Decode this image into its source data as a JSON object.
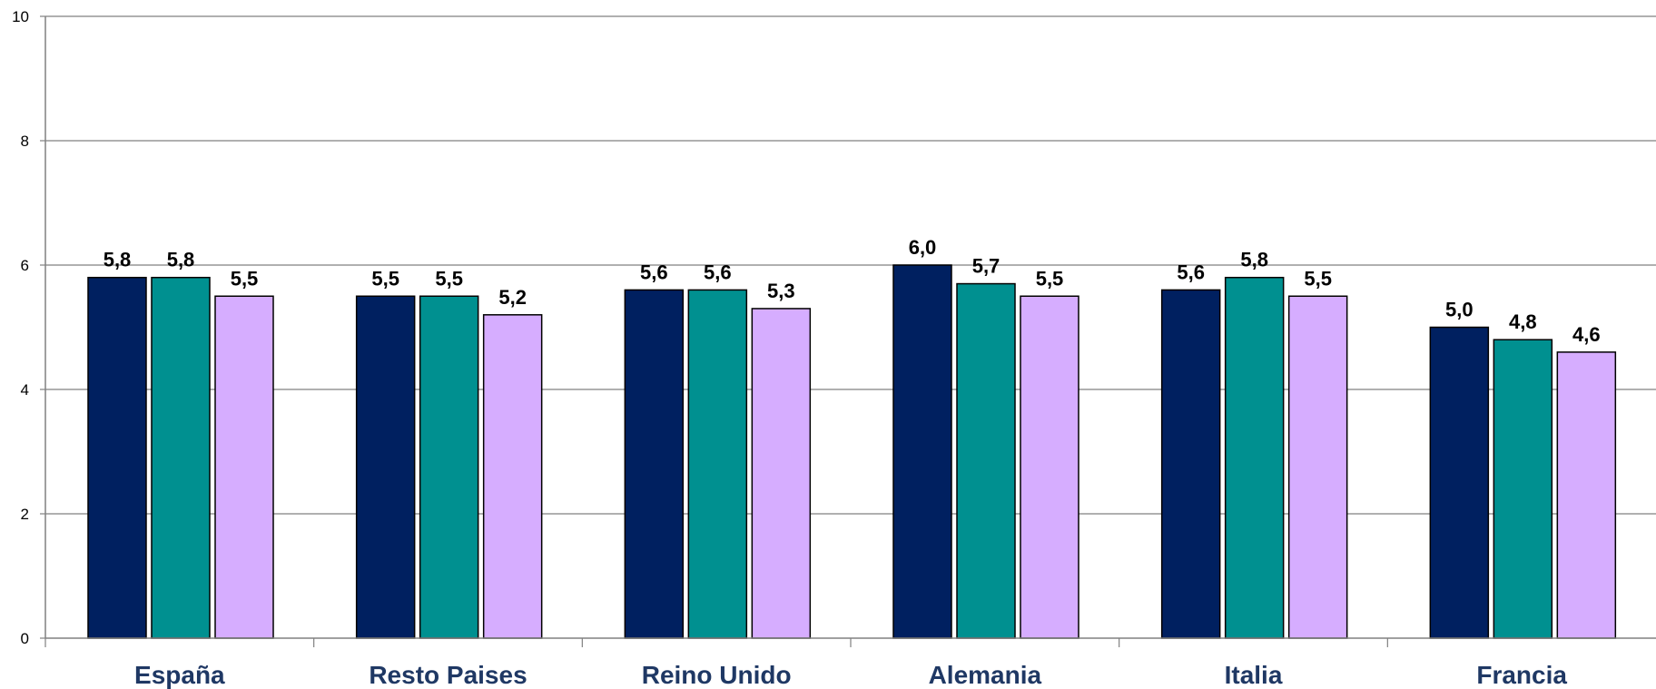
{
  "chart_data": {
    "type": "bar",
    "categories": [
      "España",
      "Resto Paises",
      "Reino Unido",
      "Alemania",
      "Italia",
      "Francia"
    ],
    "series": [
      {
        "values": [
          5.8,
          5.5,
          5.6,
          6.0,
          5.6,
          5.0
        ],
        "labels": [
          "5,8",
          "5,5",
          "5,6",
          "6,0",
          "5,6",
          "5,0"
        ],
        "color": "#002060"
      },
      {
        "values": [
          5.8,
          5.5,
          5.6,
          5.7,
          5.8,
          4.8
        ],
        "labels": [
          "5,8",
          "5,5",
          "5,6",
          "5,7",
          "5,8",
          "4,8"
        ],
        "color": "#009090"
      },
      {
        "values": [
          5.5,
          5.2,
          5.3,
          5.5,
          5.5,
          4.6
        ],
        "labels": [
          "5,5",
          "5,2",
          "5,3",
          "5,5",
          "5,5",
          "4,6"
        ],
        "color": "#d6adff"
      }
    ],
    "yticks": [
      "0",
      "2",
      "4",
      "6",
      "8",
      "10"
    ],
    "ylim": [
      0,
      10
    ],
    "grid": true,
    "legend": "none",
    "category_label_color": "#1f3864"
  }
}
